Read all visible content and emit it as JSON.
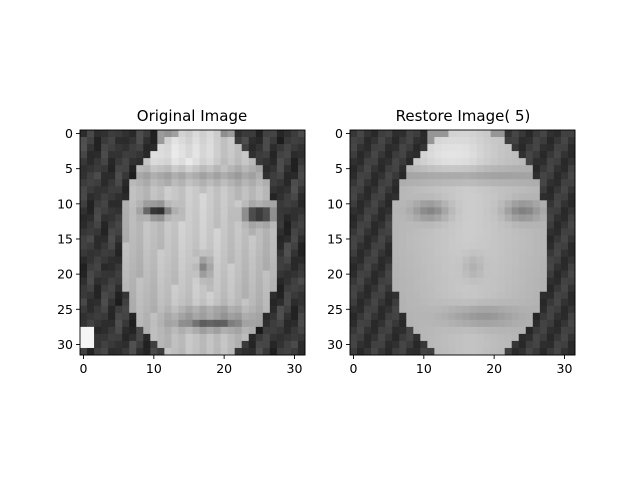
{
  "chart_data": [
    {
      "type": "heatmap",
      "title": "Original Image",
      "colormap": "gray",
      "grid": false,
      "xlim": [
        -0.5,
        31.5
      ],
      "ylim": [
        31.5,
        -0.5
      ],
      "x_ticks": [
        0,
        10,
        20,
        30
      ],
      "y_ticks": [
        0,
        5,
        10,
        15,
        20,
        25,
        30
      ],
      "pixel_grid": "32x32 grayscale face image (values 0-255); low-resolution face with dark hair on the sides, bright forehead and cheeks, dark eyes near rows 10-12 and an open smiling mouth near rows 25-28"
    },
    {
      "type": "heatmap",
      "title": "Restore Image( 5)",
      "colormap": "gray",
      "grid": false,
      "xlim": [
        -0.5,
        31.5
      ],
      "ylim": [
        31.5,
        -0.5
      ],
      "x_ticks": [
        0,
        10,
        20,
        30
      ],
      "y_ticks": [
        0,
        5,
        10,
        15,
        20,
        25,
        30
      ],
      "pixel_grid": "32x32 grayscale reconstruction of the same face using 5 components; smoother and blurrier than the original"
    }
  ]
}
